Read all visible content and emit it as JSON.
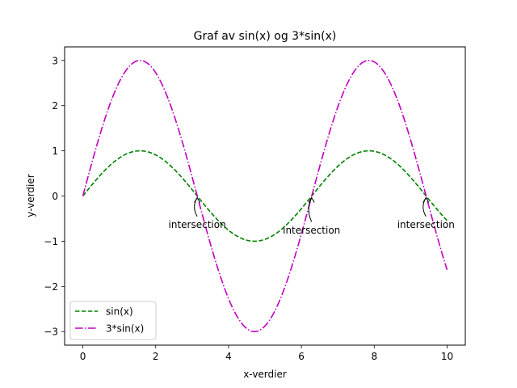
{
  "chart_data": {
    "type": "line",
    "title": "Graf av sin(x) og 3*sin(x)",
    "xlabel": "x-verdier",
    "ylabel": "y-verdier",
    "xlim": [
      -0.5,
      10.5
    ],
    "ylim": [
      -3.3,
      3.3
    ],
    "xticks": [
      0,
      2,
      4,
      6,
      8,
      10
    ],
    "yticks": [
      -3,
      -2,
      -1,
      0,
      1,
      2,
      3
    ],
    "xtick_labels": [
      "0",
      "2",
      "4",
      "6",
      "8",
      "10"
    ],
    "ytick_labels": [
      "−3",
      "−2",
      "−1",
      "0",
      "1",
      "2",
      "3"
    ],
    "x_range": [
      0,
      10
    ],
    "sample_count": 400,
    "series": [
      {
        "name": "sin(x)",
        "function": "sin(x)",
        "amplitude": 1,
        "color": "#008000",
        "dash": "dashed"
      },
      {
        "name": "3*sin(x)",
        "function": "3*sin(x)",
        "amplitude": 3,
        "color": "#bf00bf",
        "dash": "dashdot"
      }
    ],
    "annotations": [
      {
        "text": "intersection",
        "x": 3.14,
        "y": 0,
        "text_x": 3.14,
        "text_y": -0.63
      },
      {
        "text": "intersection",
        "x": 6.28,
        "y": 0,
        "text_x": 6.28,
        "text_y": -0.75
      },
      {
        "text": "intersection",
        "x": 9.42,
        "y": 0,
        "text_x": 9.42,
        "text_y": -0.63
      }
    ],
    "legend": {
      "location": "lower-left"
    },
    "grid": false
  }
}
